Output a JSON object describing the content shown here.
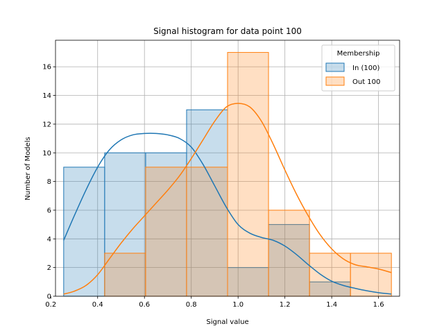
{
  "chart_data": {
    "type": "histogram",
    "title": "Signal histogram for data point 100",
    "xlabel": "Signal value",
    "ylabel": "Number of Models",
    "xlim": [
      0.22,
      1.69
    ],
    "ylim": [
      0,
      17.85
    ],
    "x_ticks": [
      0.2,
      0.4,
      0.6,
      0.8,
      1.0,
      1.2,
      1.4,
      1.6
    ],
    "y_ticks": [
      0,
      2,
      4,
      6,
      8,
      10,
      12,
      14,
      16
    ],
    "grid": true,
    "legend": {
      "title": "Membership",
      "placement": "top-right"
    },
    "series": [
      {
        "name": "In (100)",
        "color": "#1f77b4",
        "bins": [
          {
            "x0": 0.255,
            "x1": 0.43,
            "count": 9
          },
          {
            "x0": 0.43,
            "x1": 0.605,
            "count": 10
          },
          {
            "x0": 0.605,
            "x1": 0.78,
            "count": 10
          },
          {
            "x0": 0.78,
            "x1": 0.955,
            "count": 13
          },
          {
            "x0": 0.955,
            "x1": 1.13,
            "count": 2
          },
          {
            "x0": 1.13,
            "x1": 1.305,
            "count": 5
          },
          {
            "x0": 1.305,
            "x1": 1.48,
            "count": 1
          }
        ],
        "kde": [
          [
            0.255,
            3.9
          ],
          [
            0.3,
            5.6
          ],
          [
            0.35,
            7.4
          ],
          [
            0.4,
            9.0
          ],
          [
            0.45,
            10.2
          ],
          [
            0.5,
            10.9
          ],
          [
            0.55,
            11.25
          ],
          [
            0.6,
            11.35
          ],
          [
            0.65,
            11.35
          ],
          [
            0.7,
            11.25
          ],
          [
            0.75,
            11.0
          ],
          [
            0.8,
            10.4
          ],
          [
            0.85,
            9.2
          ],
          [
            0.9,
            7.7
          ],
          [
            0.95,
            6.2
          ],
          [
            1.0,
            5.0
          ],
          [
            1.05,
            4.4
          ],
          [
            1.1,
            4.1
          ],
          [
            1.15,
            3.9
          ],
          [
            1.2,
            3.5
          ],
          [
            1.25,
            2.9
          ],
          [
            1.3,
            2.2
          ],
          [
            1.35,
            1.55
          ],
          [
            1.4,
            1.05
          ],
          [
            1.45,
            0.75
          ],
          [
            1.5,
            0.55
          ],
          [
            1.55,
            0.38
          ],
          [
            1.6,
            0.25
          ],
          [
            1.655,
            0.15
          ]
        ]
      },
      {
        "name": "Out 100",
        "color": "#ff7f0e",
        "bins": [
          {
            "x0": 0.43,
            "x1": 0.605,
            "count": 3
          },
          {
            "x0": 0.605,
            "x1": 0.78,
            "count": 9
          },
          {
            "x0": 0.78,
            "x1": 0.955,
            "count": 9
          },
          {
            "x0": 0.955,
            "x1": 1.13,
            "count": 17
          },
          {
            "x0": 1.13,
            "x1": 1.305,
            "count": 6
          },
          {
            "x0": 1.305,
            "x1": 1.48,
            "count": 3
          },
          {
            "x0": 1.48,
            "x1": 1.655,
            "count": 3
          }
        ],
        "kde": [
          [
            0.255,
            0.15
          ],
          [
            0.3,
            0.35
          ],
          [
            0.35,
            0.75
          ],
          [
            0.4,
            1.5
          ],
          [
            0.45,
            2.6
          ],
          [
            0.5,
            3.7
          ],
          [
            0.55,
            4.7
          ],
          [
            0.6,
            5.6
          ],
          [
            0.65,
            6.5
          ],
          [
            0.7,
            7.4
          ],
          [
            0.75,
            8.4
          ],
          [
            0.8,
            9.6
          ],
          [
            0.85,
            10.9
          ],
          [
            0.9,
            12.2
          ],
          [
            0.95,
            13.2
          ],
          [
            1.0,
            13.45
          ],
          [
            1.05,
            13.2
          ],
          [
            1.1,
            12.2
          ],
          [
            1.15,
            10.6
          ],
          [
            1.2,
            8.8
          ],
          [
            1.25,
            7.1
          ],
          [
            1.3,
            5.6
          ],
          [
            1.35,
            4.3
          ],
          [
            1.4,
            3.3
          ],
          [
            1.45,
            2.6
          ],
          [
            1.5,
            2.2
          ],
          [
            1.55,
            2.05
          ],
          [
            1.6,
            1.9
          ],
          [
            1.655,
            1.65
          ]
        ]
      }
    ]
  }
}
